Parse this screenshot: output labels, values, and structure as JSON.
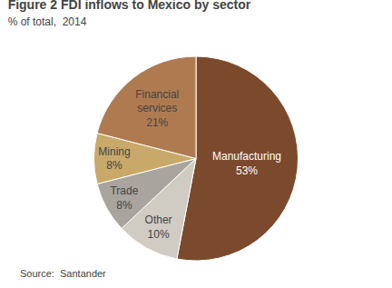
{
  "chart_data": {
    "type": "pie",
    "title": "Figure 2 FDI inflows to Mexico by sector",
    "subtitle": "% of total,  2014",
    "source": "Source:  Santander",
    "categories": [
      "Manufacturing",
      "Other",
      "Trade",
      "Mining",
      "Financial\nservices"
    ],
    "values": [
      53,
      10,
      8,
      8,
      21
    ],
    "value_labels": [
      "53%",
      "10%",
      "8%",
      "8%",
      "21%"
    ],
    "colors": [
      "#7B4A2D",
      "#D0CBC3",
      "#A9A49E",
      "#C8A96A",
      "#B07A50"
    ],
    "data_labels": true
  }
}
